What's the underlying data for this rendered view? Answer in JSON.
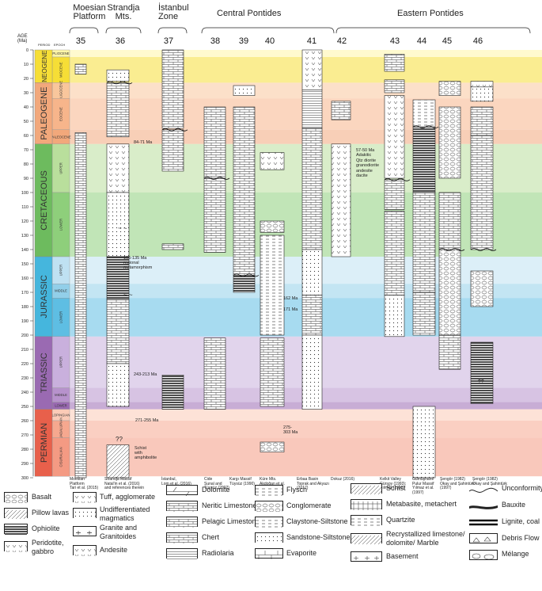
{
  "header": {
    "age_label": "AGE\n(Ma)",
    "period_label": "PERIOD",
    "epoch_label": "EPOCH",
    "region_moesian": "Moesian\nPlatform",
    "region_strandja": "Strandja\nMts.",
    "region_istanbul": "İstanbul\nZone",
    "region_central": "Central Pontides",
    "region_eastern": "Eastern Pontides"
  },
  "age_ticks": [
    "0",
    "10",
    "20",
    "30",
    "40",
    "50",
    "60",
    "70",
    "80",
    "90",
    "100",
    "110",
    "120",
    "130",
    "140",
    "150",
    "160",
    "170",
    "180",
    "190",
    "200",
    "210",
    "220",
    "230",
    "240",
    "250",
    "260",
    "270",
    "280",
    "290",
    "300"
  ],
  "periods": [
    {
      "name": "NEOGENE",
      "color": "#f6de36"
    },
    {
      "name": "PALEOGENE",
      "color": "#f2a87b"
    },
    {
      "name": "CRETACEOUS",
      "color": "#6dbb5e"
    },
    {
      "name": "JURASSIC",
      "color": "#45b6dd"
    },
    {
      "name": "TRIASSIC",
      "color": "#9a6ab2"
    },
    {
      "name": "PERMIAN",
      "color": "#e8604b"
    }
  ],
  "epochs": [
    "PLIOCENE",
    "MIOCENE",
    "OLIGOCENE",
    "EOCENE",
    "PALEOCENE",
    "UPPER",
    "LOWER",
    "UPPER",
    "MIDDLE",
    "LOWER",
    "UPPER",
    "MIDDLE",
    "LOWER",
    "LOPINGIAN",
    "GUADALUPIAN",
    "CISURALIAN"
  ],
  "columns": [
    "35",
    "36",
    "37",
    "38",
    "39",
    "40",
    "41",
    "42",
    "43",
    "44",
    "45",
    "46"
  ],
  "annotations": {
    "strandja_84": "84-71 Ma",
    "strandja_165": "165-135 Ma\nregional\nmetamorphism",
    "strandja_243": "243-213 Ma",
    "strandja_271": "271-255 Ma",
    "strandja_schist": "Schist\nwith\namphibolite",
    "qq1": "??",
    "qq2": "??",
    "c41_162": "162 Ma",
    "c41_171": "171 Ma",
    "c40_275": "275-\n303 Ma",
    "c42_adakitic": "57-50 Ma\nAdakitic\nQtz diorite\ngranodiorite\nandesite\ndacite",
    "tilde1": "~ ~",
    "tilde2": "~ ~"
  },
  "sources": [
    "Moesian\nPlatform\nTari et al. (2015)",
    "Strandja Massif\nNatal'in et al. (2016)\nand references therein",
    "İstanbul,\nLom et al. (2016)",
    "Cide\nSunal and\nTüysüz (2002)",
    "Kargı Massif\nTüysüz (1990)",
    "Küre Mts.\nAkdoğan et al.\n(2017)",
    "Erbaa Basin\nToprak and Akyazı\n(2017)",
    "Dokuz (2016)",
    "Kelkit Valley\nGürsoy (1993);\nYılmaz (1992)",
    "Gümüşhane\nPulur Massif\nYılmaz et al.\n(1997)",
    "Şengör (1982)\nOkay and Şahintürk\n(1997)",
    "Şengör (1982)\nOkay and Şahintürk\n(1997)"
  ],
  "legend": {
    "basalt": "Basalt",
    "pillow": "Pillow lavas",
    "ophiolite": "Ophiolite",
    "peridotite": "Peridotite,\ngabbro",
    "tuff": "Tuff, agglomerate",
    "undiff": "Undifferentiated\nmagmatics",
    "granite": "Granite and\nGranitoides",
    "andesite": "Andesite",
    "dolomite": "Dolomite",
    "neritic": "Neritic Limestone",
    "pelagic": "Pelagic Limestone",
    "chert": "Chert",
    "radiolaria": "Radiolaria",
    "flysch": "Flysch",
    "conglomerate": "Conglomerate",
    "claystone": "Claystone-Siltstone",
    "sandstone": "Sandstone-Siltstone",
    "evaporite": "Evaporite",
    "schist": "Schist",
    "metabasite": "Metabasite, metachert",
    "quartzite": "Quartzite",
    "recryst": "Recrystallized limestone/\ndolomite/ Marble",
    "basement": "Basement",
    "unconformity": "Unconformity",
    "bauxite": "Bauxite",
    "lignite": "Lignite, coal",
    "debris": "Debris Flow",
    "melange": "Mélange"
  }
}
